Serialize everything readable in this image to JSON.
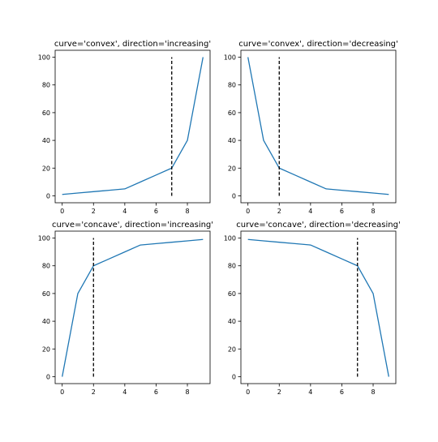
{
  "chart_data": [
    {
      "type": "line",
      "title": "curve='convex', direction='increasing'",
      "xlabel": "",
      "ylabel": "",
      "x": [
        0,
        1,
        2,
        3,
        4,
        5,
        6,
        7,
        8,
        9
      ],
      "series": [
        {
          "values": [
            1,
            2,
            3,
            4,
            5,
            10,
            15,
            20,
            40,
            100
          ],
          "color": "#1f77b4"
        }
      ],
      "knee": {
        "x": 7,
        "y_range": [
          0,
          100
        ],
        "style": "dashed",
        "color": "#000000"
      },
      "xlim": [
        -0.45,
        9.45
      ],
      "ylim": [
        -5,
        105
      ],
      "xticks": [
        0,
        2,
        4,
        6,
        8
      ],
      "yticks": [
        0,
        20,
        40,
        60,
        80,
        100
      ],
      "grid": false
    },
    {
      "type": "line",
      "title": "curve='convex', direction='decreasing'",
      "xlabel": "",
      "ylabel": "",
      "x": [
        0,
        1,
        2,
        3,
        4,
        5,
        6,
        7,
        8,
        9
      ],
      "series": [
        {
          "values": [
            100,
            40,
            20,
            15,
            10,
            5,
            4,
            3,
            2,
            1
          ],
          "color": "#1f77b4"
        }
      ],
      "knee": {
        "x": 2,
        "y_range": [
          0,
          100
        ],
        "style": "dashed",
        "color": "#000000"
      },
      "xlim": [
        -0.45,
        9.45
      ],
      "ylim": [
        -5,
        105
      ],
      "xticks": [
        0,
        2,
        4,
        6,
        8
      ],
      "yticks": [
        0,
        20,
        40,
        60,
        80,
        100
      ],
      "grid": false
    },
    {
      "type": "line",
      "title": "curve='concave', direction='increasing'",
      "xlabel": "",
      "ylabel": "",
      "x": [
        0,
        1,
        2,
        3,
        4,
        5,
        6,
        7,
        8,
        9
      ],
      "series": [
        {
          "values": [
            0,
            60,
            80,
            85,
            90,
            95,
            96,
            97,
            98,
            99
          ],
          "color": "#1f77b4"
        }
      ],
      "knee": {
        "x": 2,
        "y_range": [
          0,
          100
        ],
        "style": "dashed",
        "color": "#000000"
      },
      "xlim": [
        -0.45,
        9.45
      ],
      "ylim": [
        -5,
        105
      ],
      "xticks": [
        0,
        2,
        4,
        6,
        8
      ],
      "yticks": [
        0,
        20,
        40,
        60,
        80,
        100
      ],
      "grid": false
    },
    {
      "type": "line",
      "title": "curve='concave', direction='decreasing'",
      "xlabel": "",
      "ylabel": "",
      "x": [
        0,
        1,
        2,
        3,
        4,
        5,
        6,
        7,
        8,
        9
      ],
      "series": [
        {
          "values": [
            99,
            98,
            97,
            96,
            95,
            90,
            85,
            80,
            60,
            0
          ],
          "color": "#1f77b4"
        }
      ],
      "knee": {
        "x": 7,
        "y_range": [
          0,
          100
        ],
        "style": "dashed",
        "color": "#000000"
      },
      "xlim": [
        -0.45,
        9.45
      ],
      "ylim": [
        -5,
        105
      ],
      "xticks": [
        0,
        2,
        4,
        6,
        8
      ],
      "yticks": [
        0,
        20,
        40,
        60,
        80,
        100
      ],
      "grid": false
    }
  ]
}
